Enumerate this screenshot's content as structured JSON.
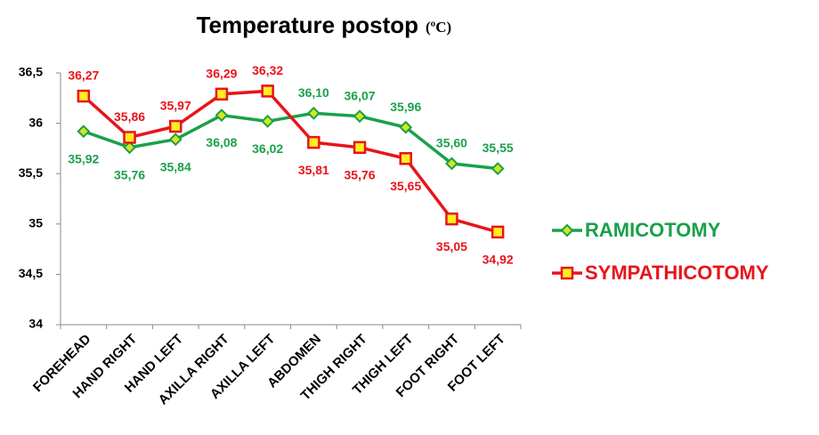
{
  "chart_data": {
    "type": "line",
    "title": "Temperature postop",
    "title_unit": "(ºC)",
    "categories": [
      "FOREHEAD",
      "HAND RIGHT",
      "HAND LEFT",
      "AXILLA RIGHT",
      "AXILLA LEFT",
      "ABDOMEN",
      "THIGH RIGHT",
      "THIGH LEFT",
      "FOOT RIGHT",
      "FOOT LEFT"
    ],
    "series": [
      {
        "name": "RAMICOTOMY",
        "color": "#1aa04a",
        "marker": "diamond",
        "marker_fill": "#d6e61e",
        "values": [
          35.92,
          35.76,
          35.84,
          36.08,
          36.02,
          36.1,
          36.07,
          35.96,
          35.6,
          35.55
        ],
        "value_labels": [
          "35,92",
          "35,76",
          "35,84",
          "36,08",
          "36,02",
          "36,10",
          "36,07",
          "35,96",
          "35,60",
          "35,55"
        ]
      },
      {
        "name": "SYMPATHICOTOMY",
        "color": "#e8141b",
        "marker": "square",
        "marker_fill": "#ffee22",
        "values": [
          36.27,
          35.86,
          35.97,
          36.29,
          36.32,
          35.81,
          35.76,
          35.65,
          35.05,
          34.92
        ],
        "value_labels": [
          "36,27",
          "35,86",
          "35,97",
          "36,29",
          "36,32",
          "35,81",
          "35,76",
          "35,65",
          "35,05",
          "34,92"
        ]
      }
    ],
    "ylim": [
      34,
      36.5
    ],
    "yticks": [
      34,
      {
        "value": 34.5,
        "label": "34,5"
      },
      35,
      {
        "value": 35.5,
        "label": "35,5"
      },
      36,
      {
        "value": 36.5,
        "label": "36,5"
      }
    ],
    "grid": false,
    "legend": "right"
  }
}
